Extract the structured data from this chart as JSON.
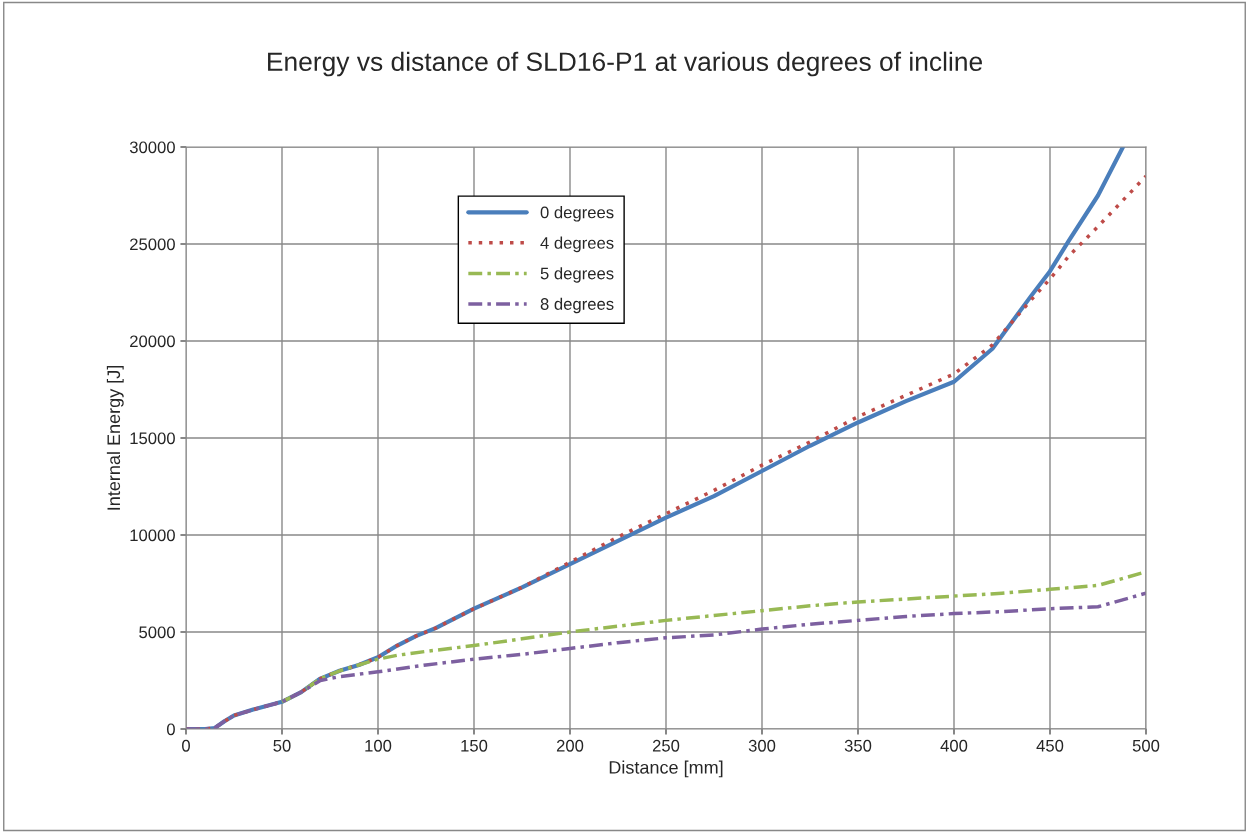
{
  "chart_data": {
    "type": "line",
    "title": "Energy vs distance of SLD16-P1 at various degrees of incline",
    "xlabel": "Distance [mm]",
    "ylabel": "Internal Energy [J]",
    "xlim": [
      0,
      500
    ],
    "xticks": [
      0,
      50,
      100,
      150,
      200,
      250,
      300,
      350,
      400,
      450,
      500
    ],
    "ylim": [
      0,
      30000
    ],
    "yticks": [
      0,
      5000,
      10000,
      15000,
      20000,
      25000,
      30000
    ],
    "grid": true,
    "legend": "top left",
    "marker": "none",
    "series": [
      {
        "name": "0 degrees",
        "color": "#4a7ebb",
        "line_style": "solid",
        "x": [
          0,
          10,
          15,
          20,
          25,
          35,
          50,
          60,
          70,
          80,
          90,
          100,
          110,
          120,
          130,
          140,
          150,
          175,
          200,
          225,
          250,
          275,
          300,
          325,
          350,
          375,
          400,
          420,
          440,
          450,
          460,
          475,
          488
        ],
        "values": [
          0,
          0,
          50,
          400,
          700,
          1000,
          1400,
          1900,
          2600,
          3000,
          3300,
          3700,
          4300,
          4800,
          5200,
          5700,
          6200,
          7300,
          8500,
          9700,
          10900,
          12000,
          13300,
          14600,
          15800,
          16900,
          17900,
          19600,
          22300,
          23600,
          25200,
          27500,
          30000
        ]
      },
      {
        "name": "4 degrees",
        "color": "#be4b48",
        "line_style": "dotted",
        "x": [
          0,
          10,
          15,
          20,
          25,
          35,
          50,
          60,
          70,
          80,
          90,
          100,
          110,
          120,
          130,
          140,
          150,
          175,
          200,
          225,
          250,
          275,
          300,
          325,
          350,
          375,
          400,
          420,
          440,
          450,
          460,
          475,
          500
        ],
        "values": [
          0,
          0,
          50,
          400,
          700,
          1000,
          1400,
          1900,
          2600,
          3000,
          3300,
          3700,
          4300,
          4800,
          5200,
          5700,
          6200,
          7300,
          8600,
          9900,
          11100,
          12300,
          13600,
          14800,
          16100,
          17200,
          18300,
          19800,
          22100,
          23200,
          24400,
          25900,
          28500
        ]
      },
      {
        "name": "5 degrees",
        "color": "#98b954",
        "line_style": "dashed",
        "x": [
          50,
          60,
          70,
          80,
          90,
          100,
          110,
          125,
          150,
          175,
          200,
          225,
          250,
          275,
          300,
          325,
          350,
          375,
          400,
          425,
          450,
          475,
          500
        ],
        "values": [
          1400,
          1900,
          2600,
          3000,
          3300,
          3600,
          3800,
          4000,
          4300,
          4650,
          5000,
          5300,
          5600,
          5850,
          6100,
          6350,
          6550,
          6700,
          6850,
          7000,
          7200,
          7400,
          8100
        ]
      },
      {
        "name": "8 degrees",
        "color": "#7d60a0",
        "line_style": "dashed",
        "x": [
          0,
          10,
          15,
          20,
          25,
          35,
          50,
          60,
          70,
          80,
          100,
          125,
          150,
          175,
          200,
          225,
          250,
          275,
          300,
          325,
          350,
          375,
          400,
          425,
          450,
          475,
          500
        ],
        "values": [
          0,
          0,
          50,
          400,
          700,
          1000,
          1400,
          1900,
          2500,
          2700,
          2950,
          3300,
          3600,
          3850,
          4150,
          4450,
          4700,
          4850,
          5150,
          5400,
          5600,
          5800,
          5950,
          6050,
          6200,
          6300,
          7000
        ]
      }
    ]
  }
}
